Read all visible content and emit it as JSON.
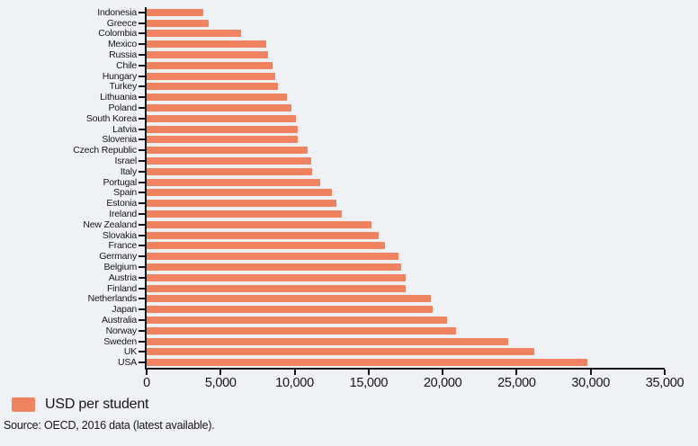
{
  "colors": {
    "background": "#eff1f4",
    "bar": "#f0835f",
    "axis": "#161616",
    "text": "#161616"
  },
  "chart_data": {
    "type": "bar",
    "orientation": "horizontal",
    "title": "",
    "xlabel": "",
    "ylabel": "",
    "grid": false,
    "xlim": [
      0,
      35000
    ],
    "x_tick_values": [
      0,
      5000,
      10000,
      15000,
      20000,
      25000,
      30000,
      35000
    ],
    "x_tick_labels": [
      "0",
      "5,000",
      "10,000",
      "15,000",
      "20,000",
      "25,000",
      "30,000",
      "35,000"
    ],
    "categories": [
      "Indonesia",
      "Greece",
      "Colombia",
      "Mexico",
      "Russia",
      "Chile",
      "Hungary",
      "Turkey",
      "Lithuania",
      "Poland",
      "South Korea",
      "Latvia",
      "Slovenia",
      "Czech Republic",
      "Israel",
      "Italy",
      "Portugal",
      "Spain",
      "Estonia",
      "Ireland",
      "New Zealand",
      "Slovakia",
      "France",
      "Germany",
      "Belgium",
      "Austria",
      "Finland",
      "Netherlands",
      "Japan",
      "Australia",
      "Norway",
      "Sweden",
      "UK",
      "USA"
    ],
    "values": [
      3800,
      4200,
      6400,
      8100,
      8200,
      8500,
      8700,
      8900,
      9500,
      9800,
      10100,
      10200,
      10200,
      10900,
      11100,
      11200,
      11700,
      12500,
      12800,
      13200,
      15200,
      15700,
      16100,
      17000,
      17200,
      17500,
      17500,
      19200,
      19300,
      20300,
      20900,
      24400,
      26200,
      29800
    ],
    "legend_position": "bottom-left",
    "legend_label": "USD per student"
  },
  "source_note": "Source: OECD, 2016 data (latest available)."
}
